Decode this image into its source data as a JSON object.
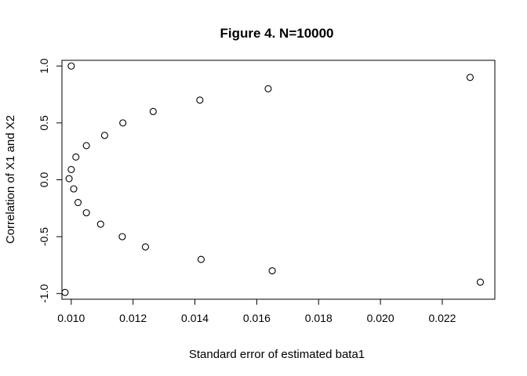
{
  "chart_data": {
    "type": "scatter",
    "title": "Figure 4. N=10000",
    "xlabel": "Standard error of estimated bata1",
    "ylabel": "Correlation of X1 and X2",
    "xlim": [
      0.0097,
      0.0237
    ],
    "ylim": [
      -1.05,
      1.05
    ],
    "x_ticks": [
      0.01,
      0.012,
      0.014,
      0.016,
      0.018,
      0.02,
      0.022
    ],
    "x_tick_labels": [
      "0.010",
      "0.012",
      "0.014",
      "0.016",
      "0.018",
      "0.020",
      "0.022"
    ],
    "y_ticks": [
      -1.0,
      -0.5,
      0.0,
      0.5,
      1.0
    ],
    "y_tick_labels": [
      "-1.0",
      "-0.5",
      "0.0",
      "0.5",
      "1.0"
    ],
    "grid": false,
    "marker": "open-circle",
    "points": [
      {
        "x": 0.01,
        "y": 1.0
      },
      {
        "x": 0.0229,
        "y": 0.9
      },
      {
        "x": 0.01637,
        "y": 0.8
      },
      {
        "x": 0.01416,
        "y": 0.7
      },
      {
        "x": 0.01265,
        "y": 0.6
      },
      {
        "x": 0.01167,
        "y": 0.5
      },
      {
        "x": 0.01108,
        "y": 0.39
      },
      {
        "x": 0.01049,
        "y": 0.3
      },
      {
        "x": 0.01015,
        "y": 0.2
      },
      {
        "x": 0.01,
        "y": 0.09
      },
      {
        "x": 0.00993,
        "y": 0.01
      },
      {
        "x": 0.01008,
        "y": -0.08
      },
      {
        "x": 0.01022,
        "y": -0.2
      },
      {
        "x": 0.01049,
        "y": -0.29
      },
      {
        "x": 0.01095,
        "y": -0.39
      },
      {
        "x": 0.01165,
        "y": -0.5
      },
      {
        "x": 0.0124,
        "y": -0.59
      },
      {
        "x": 0.0142,
        "y": -0.7
      },
      {
        "x": 0.0165,
        "y": -0.8
      },
      {
        "x": 0.02323,
        "y": -0.9
      },
      {
        "x": 0.0098,
        "y": -0.99
      }
    ]
  }
}
